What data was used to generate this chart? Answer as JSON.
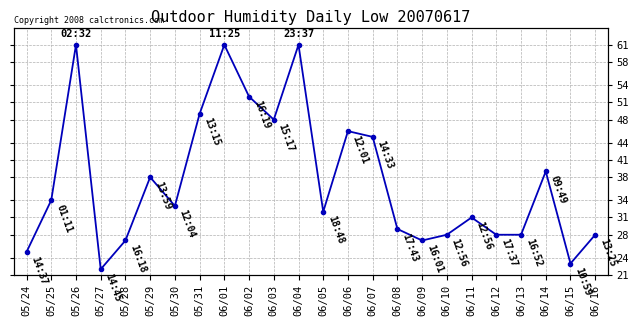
{
  "title": "Outdoor Humidity Daily Low 20070617",
  "copyright": "Copyright 2008 calctronics.com",
  "x_labels": [
    "05/24",
    "05/25",
    "05/26",
    "05/27",
    "05/28",
    "05/29",
    "05/30",
    "05/31",
    "06/01",
    "06/02",
    "06/03",
    "06/04",
    "06/05",
    "06/06",
    "06/07",
    "06/08",
    "06/09",
    "06/10",
    "06/11",
    "06/12",
    "06/13",
    "06/14",
    "06/15",
    "06/16"
  ],
  "y_values": [
    25,
    34,
    61,
    22,
    27,
    38,
    33,
    49,
    61,
    52,
    48,
    61,
    32,
    46,
    45,
    29,
    27,
    28,
    31,
    28,
    28,
    39,
    23,
    28
  ],
  "time_labels": [
    "14:37",
    "01:11",
    "02:32",
    "14:45",
    "16:18",
    "13:59",
    "12:04",
    "13:15",
    "11:25",
    "16:19",
    "15:17",
    "23:37",
    "18:48",
    "12:01",
    "14:33",
    "17:43",
    "16:01",
    "12:56",
    "12:56",
    "17:37",
    "16:52",
    "09:49",
    "10:59",
    "13:25"
  ],
  "peak_indices": [
    2,
    8,
    11
  ],
  "ylim_min": 21,
  "ylim_max": 64,
  "yticks": [
    21,
    24,
    28,
    31,
    34,
    38,
    41,
    44,
    48,
    51,
    54,
    58,
    61
  ],
  "line_color": "#0000bb",
  "marker_color": "#0000bb",
  "bg_color": "#ffffff",
  "grid_color": "#b0b0b0",
  "title_fontsize": 11,
  "label_fontsize": 7,
  "tick_fontsize": 7.5
}
